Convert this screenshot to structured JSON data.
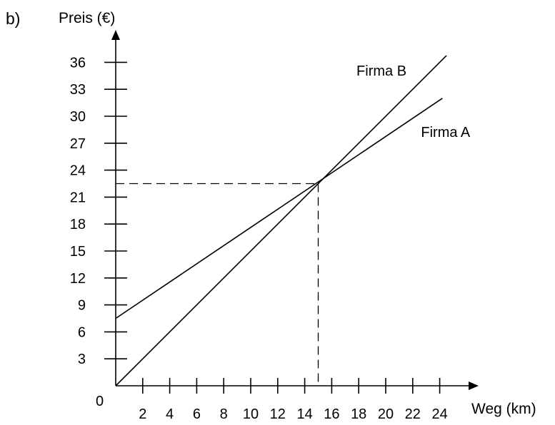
{
  "label": "b)",
  "chart_data": {
    "type": "line",
    "xlabel": "Weg (km)",
    "ylabel": "Preis (€)",
    "origin_label": "0",
    "xlim": [
      0,
      26
    ],
    "ylim": [
      0,
      39
    ],
    "x_ticks": [
      2,
      4,
      6,
      8,
      10,
      12,
      14,
      16,
      18,
      20,
      22,
      24
    ],
    "y_ticks": [
      3,
      6,
      9,
      12,
      15,
      18,
      21,
      24,
      27,
      30,
      33,
      36
    ],
    "series": [
      {
        "name": "Firma B",
        "x": [
          0,
          24.5
        ],
        "y": [
          0,
          36.75
        ]
      },
      {
        "name": "Firma A",
        "x": [
          0,
          24.2
        ],
        "y": [
          7.5,
          32
        ]
      }
    ],
    "intersection": {
      "x": 15,
      "y": 22.5
    },
    "grid": false,
    "line_color": "#000000"
  }
}
